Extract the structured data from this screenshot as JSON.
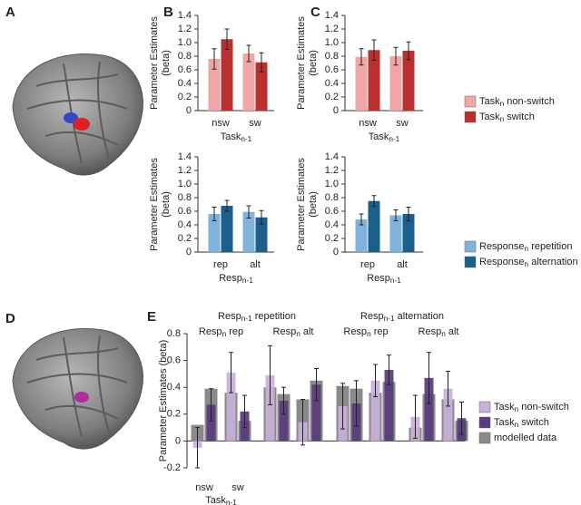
{
  "images": [
    {
      "label": "A"
    },
    {
      "label": "D"
    }
  ],
  "chart_data": [
    {
      "type": "bar",
      "panel": "B",
      "ylabel": [
        "Parameter Estimates",
        "(beta)"
      ],
      "xlabel": [
        "Task",
        "n-1"
      ],
      "categories": [
        "nsw",
        "sw"
      ],
      "ylim": [
        0,
        1.4
      ],
      "yticks": [
        0,
        0.2,
        0.4,
        0.6,
        0.8,
        {
          "value": 1,
          "label": "1.0"
        },
        1.2,
        1.4
      ],
      "series": [
        {
          "color": "#f2a5a5",
          "values": [
            0.76,
            0.84
          ],
          "errors": [
            0.15,
            0.12
          ]
        },
        {
          "color": "#b8312f",
          "values": [
            1.05,
            0.71
          ],
          "errors": [
            0.15,
            0.14
          ]
        }
      ]
    },
    {
      "type": "bar",
      "panel": "C",
      "ylabel": [
        "Parameter Estimates",
        "(beta)"
      ],
      "xlabel": [
        "Task",
        "n-1"
      ],
      "categories": [
        "nsw",
        "sw"
      ],
      "ylim": [
        0,
        1.4
      ],
      "yticks": [
        0,
        0.2,
        0.4,
        0.6,
        0.8,
        {
          "value": 1,
          "label": "1.0"
        },
        1.2,
        1.4
      ],
      "series": [
        {
          "name": [
            "Task",
            "n",
            " non-switch"
          ],
          "color": "#f2a5a5",
          "values": [
            0.79,
            0.8
          ],
          "errors": [
            0.12,
            0.13
          ]
        },
        {
          "name": [
            "Task",
            "n",
            " switch"
          ],
          "color": "#b8312f",
          "values": [
            0.89,
            0.88
          ],
          "errors": [
            0.15,
            0.13
          ]
        }
      ]
    },
    {
      "type": "bar",
      "ylabel": [
        "Parameter Estimates",
        "(beta)"
      ],
      "xlabel": [
        "Resp",
        "n-1"
      ],
      "categories": [
        "rep",
        "alt"
      ],
      "ylim": [
        0,
        1.4
      ],
      "yticks": [
        0,
        0.2,
        0.4,
        0.6,
        0.8,
        {
          "value": 1,
          "label": "1.0"
        },
        1.2,
        1.4
      ],
      "series": [
        {
          "color": "#7fb3dc",
          "values": [
            0.56,
            0.59
          ],
          "errors": [
            0.1,
            0.09
          ]
        },
        {
          "color": "#1b5f8c",
          "values": [
            0.68,
            0.51
          ],
          "errors": [
            0.08,
            0.1
          ]
        }
      ]
    },
    {
      "type": "bar",
      "ylabel": [
        "Parameter Estimates",
        "(beta)"
      ],
      "xlabel": [
        "Resp",
        "n-1"
      ],
      "categories": [
        "rep",
        "alt"
      ],
      "ylim": [
        0,
        1.4
      ],
      "yticks": [
        0,
        0.2,
        0.4,
        0.6,
        0.8,
        {
          "value": 1,
          "label": "1.0"
        },
        1.2,
        1.4
      ],
      "series": [
        {
          "name": [
            "Response",
            "n",
            " repetition"
          ],
          "color": "#7fb3dc",
          "values": [
            0.48,
            0.54
          ],
          "errors": [
            0.08,
            0.08
          ]
        },
        {
          "name": [
            "Response",
            "n",
            " alternation"
          ],
          "color": "#1b5f8c",
          "values": [
            0.75,
            0.56
          ],
          "errors": [
            0.08,
            0.1
          ]
        }
      ]
    },
    {
      "type": "bar",
      "panel": "E",
      "ylabel": [
        "Parameter Estimates (beta)"
      ],
      "xlabel": [
        "Task",
        "n-1"
      ],
      "categories": [
        "nsw",
        "sw",
        null,
        null,
        null,
        null,
        null,
        null
      ],
      "ylim": [
        -0.2,
        0.8
      ],
      "yticks": [
        -0.2,
        0,
        0.2,
        0.4,
        0.6,
        0.8
      ],
      "headers": [
        {
          "label": [
            "Resp",
            "n-1",
            " repetition"
          ],
          "groups": [
            [
              "Resp",
              "n",
              " rep"
            ],
            [
              "Resp",
              "n",
              " alt"
            ]
          ]
        },
        {
          "label": [
            "Resp",
            "n-1",
            " alternation"
          ],
          "groups": [
            [
              "Resp",
              "n",
              " rep"
            ],
            [
              "Resp",
              "n",
              " alt"
            ]
          ]
        }
      ],
      "series": [
        {
          "name": [
            "Task",
            "n",
            " non-switch"
          ],
          "color": "#c9b0d8",
          "values": [
            -0.05,
            0.51,
            0.49,
            0.14,
            0.26,
            0.45,
            0.18,
            0.39
          ],
          "errors": [
            0.15,
            0.15,
            0.22,
            0.17,
            0.17,
            0.12,
            0.16,
            0.13
          ]
        },
        {
          "name": [
            "Task",
            "n",
            " switch"
          ],
          "color": "#5a3a7c",
          "values": [
            0.27,
            0.22,
            0.3,
            0.42,
            0.28,
            0.53,
            0.47,
            0.17
          ],
          "errors": [
            0.12,
            0.12,
            0.1,
            0.12,
            0.17,
            0.11,
            0.19,
            0.12
          ]
        },
        {
          "name": [
            "modelled data"
          ],
          "color": "#8a8a8a",
          "values": [
            [
              0.12,
              0.39
            ],
            [
              0.36,
              0.15
            ],
            [
              0.4,
              0.35
            ],
            [
              0.31,
              0.45
            ],
            [
              0.41,
              0.39
            ],
            [
              0.36,
              0.44
            ],
            [
              0.1,
              0.35
            ],
            [
              0.31,
              0.15
            ]
          ]
        }
      ]
    }
  ]
}
